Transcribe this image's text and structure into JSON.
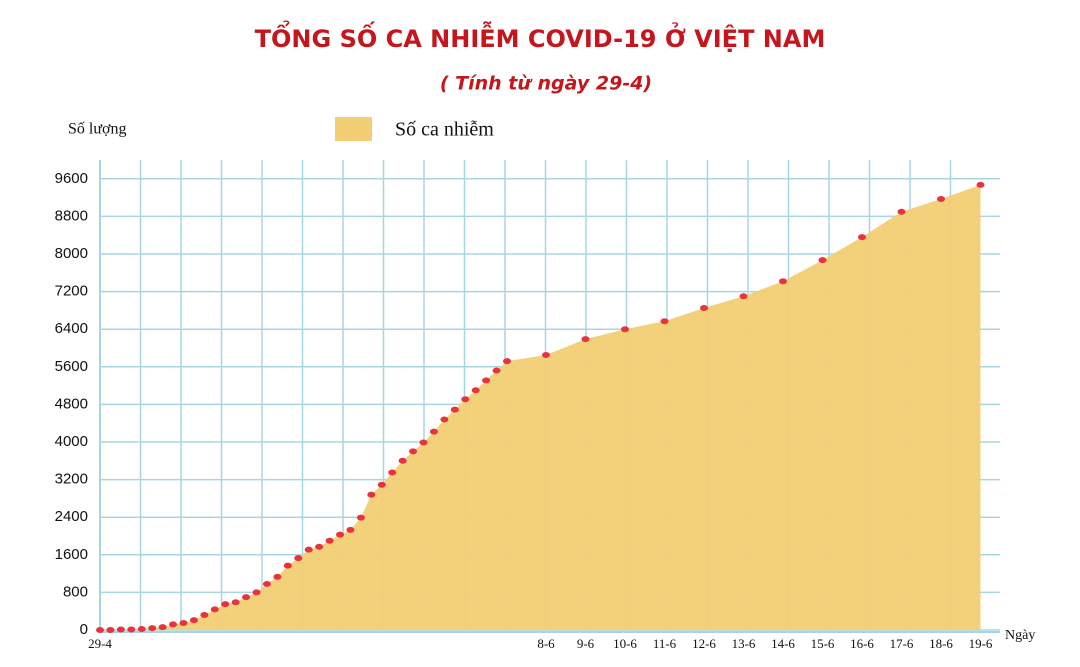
{
  "chart_data": {
    "type": "area",
    "title": "TỔNG SỐ CA NHIỄM COVID-19 Ở VIỆT NAM",
    "subtitle": "( Tính từ ngày 29-4)",
    "y_label": "Số lượng",
    "x_label": "Ngày",
    "categories": [
      "29-4",
      null,
      null,
      null,
      null,
      null,
      null,
      null,
      null,
      null,
      null,
      null,
      null,
      null,
      null,
      null,
      null,
      null,
      null,
      null,
      null,
      null,
      null,
      null,
      null,
      null,
      null,
      null,
      null,
      null,
      null,
      null,
      null,
      null,
      null,
      null,
      null,
      null,
      null,
      null,
      "8-6",
      "9-6",
      "10-6",
      "11-6",
      "12-6",
      "13-6",
      "14-6",
      "15-6",
      "16-6",
      "17-6",
      "18-6",
      "19-6"
    ],
    "series": [
      {
        "name": "Số ca nhiễm",
        "color": "#f2cf74",
        "marker_color": "#e8323c",
        "values": [
          0,
          0,
          10,
          10,
          20,
          40,
          60,
          120,
          150,
          210,
          320,
          440,
          550,
          590,
          700,
          800,
          980,
          1130,
          1370,
          1530,
          1710,
          1770,
          1900,
          2030,
          2130,
          2390,
          2880,
          3090,
          3350,
          3600,
          3800,
          3990,
          4220,
          4480,
          4690,
          4910,
          5100,
          5310,
          5520,
          5720,
          5850,
          6190,
          6400,
          6570,
          6850,
          7100,
          7420,
          7870,
          8360,
          8900,
          9170,
          9470
        ]
      }
    ],
    "ylim": [
      0,
      10000
    ],
    "yticks": [
      0,
      800,
      1600,
      2400,
      3200,
      4000,
      4800,
      5600,
      6400,
      7200,
      8000,
      8800,
      9600
    ],
    "grid": true
  }
}
